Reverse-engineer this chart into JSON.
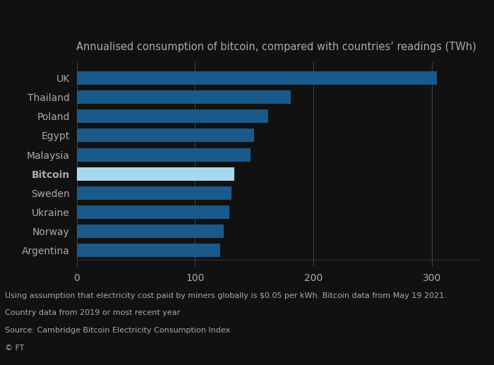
{
  "title": "Annualised consumption of bitcoin, compared with countries’ readings (TWh)",
  "categories": [
    "UK",
    "Thailand",
    "Poland",
    "Egypt",
    "Malaysia",
    "Bitcoin",
    "Sweden",
    "Ukraine",
    "Norway",
    "Argentina"
  ],
  "values": [
    304,
    181,
    162,
    150,
    147,
    133,
    131,
    129,
    124,
    121
  ],
  "bar_colors": [
    "#1a5a8a",
    "#1a5a8a",
    "#1a5a8a",
    "#1a5a8a",
    "#1a5a8a",
    "#a8d8f0",
    "#1a5a8a",
    "#1a5a8a",
    "#1a5a8a",
    "#1a5a8a"
  ],
  "background_color": "#111111",
  "xlim": [
    0,
    340
  ],
  "xticks": [
    0,
    100,
    200,
    300
  ],
  "footnote_line1": "Using assumption that electricity cost paid by miners globally is $0.05 per kWh. Bitcoin data from May 19 2021.",
  "footnote_line2": "Country data from 2019 or most recent year",
  "footnote_line3": "Source: Cambridge Bitcoin Electricity Consumption Index",
  "footnote_line4": "© FT",
  "title_fontsize": 10.5,
  "label_fontsize": 10,
  "tick_fontsize": 10,
  "footnote_fontsize": 8,
  "bar_height": 0.7,
  "grid_color": "#444444",
  "text_color": "#aaaaaa",
  "bitcoin_label_color": "#aaaaaa"
}
